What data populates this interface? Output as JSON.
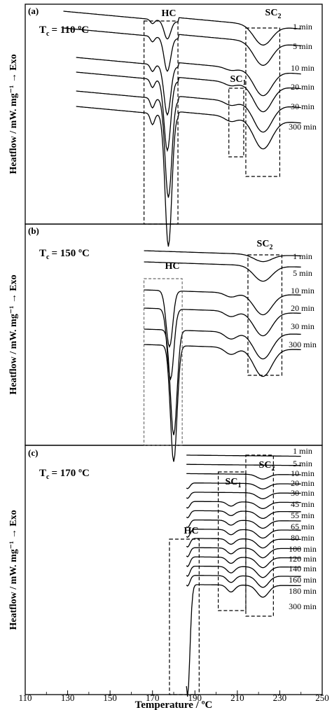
{
  "chart_data": {
    "type": "line",
    "xlim": [
      110,
      250
    ],
    "xlabel": "Temperature / ºC",
    "x_ticks": [
      "110",
      "130",
      "150",
      "170",
      "190",
      "210",
      "230",
      "250"
    ],
    "ylabel": "Heatflow / mW. mg⁻¹ → Exo",
    "panels": [
      {
        "label": "(a)",
        "condition": "Tc = 110 ºC",
        "tc_base": "T",
        "tc_sub": "c",
        "tc_value": "= 110 ºC",
        "regions": [
          {
            "base": "HC",
            "sub": "",
            "x_range": [
              166,
              182
            ]
          },
          {
            "base": "SC",
            "sub": "1",
            "x_range": [
              206,
              213
            ]
          },
          {
            "base": "SC",
            "sub": "2",
            "x_range": [
              214,
              230
            ]
          }
        ],
        "series": [
          {
            "name": "1 min"
          },
          {
            "name": "5 min"
          },
          {
            "name": "10 min"
          },
          {
            "name": "20 min"
          },
          {
            "name": "30 min"
          },
          {
            "name": "300 min"
          }
        ]
      },
      {
        "label": "(b)",
        "condition": "Tc = 150 ºC",
        "tc_base": "T",
        "tc_sub": "c",
        "tc_value": "= 150 ºC",
        "regions": [
          {
            "base": "HC",
            "sub": "",
            "x_range": [
              166,
              184
            ]
          },
          {
            "base": "SC",
            "sub": "2",
            "x_range": [
              215,
              231
            ]
          }
        ],
        "series": [
          {
            "name": "1 min"
          },
          {
            "name": "5 min"
          },
          {
            "name": "10 min"
          },
          {
            "name": "20 min"
          },
          {
            "name": "30 min"
          },
          {
            "name": "300 min"
          }
        ]
      },
      {
        "label": "(c)",
        "condition": "Tc = 170 ºC",
        "tc_base": "T",
        "tc_sub": "c",
        "tc_value": "= 170 ºC",
        "regions": [
          {
            "base": "HC",
            "sub": "",
            "x_range": [
              178,
              192
            ]
          },
          {
            "base": "SC",
            "sub": "1",
            "x_range": [
              201,
              214
            ]
          },
          {
            "base": "SC",
            "sub": "2",
            "x_range": [
              214,
              227
            ]
          }
        ],
        "series": [
          {
            "name": "1 min"
          },
          {
            "name": "5 min"
          },
          {
            "name": "10 min"
          },
          {
            "name": "20 min"
          },
          {
            "name": "30 min"
          },
          {
            "name": "45 min"
          },
          {
            "name": "55 min"
          },
          {
            "name": "65 min"
          },
          {
            "name": "80 min"
          },
          {
            "name": "100 min"
          },
          {
            "name": "120 min"
          },
          {
            "name": "140 min"
          },
          {
            "name": "160 min"
          },
          {
            "name": "180 min"
          },
          {
            "name": "300 min"
          }
        ]
      }
    ]
  }
}
